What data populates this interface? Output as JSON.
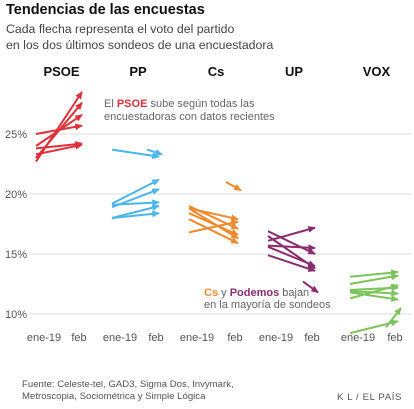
{
  "title": "Tendencias de las encuestas",
  "subtitle_line1": "Cada flecha representa el voto del partido",
  "subtitle_line2": "en los dos últimos sondeos de una encuestadora",
  "source_line1": "Fuente: Celeste-tel, GAD3, Sigma Dos,  Invymark,",
  "source_line2": "Metroscopia, Sociométrica y Simple Lógica",
  "credit": "K L / EL PAÍS",
  "colors": {
    "PSOE": "#e0303a",
    "PP": "#4bb6ec",
    "Cs": "#f08a2c",
    "UP": "#8b2b6f",
    "VOX": "#7cc45a",
    "grid": "#dddddd",
    "axis_text": "#555555"
  },
  "annotations": {
    "psoe_pre": "El ",
    "psoe_party": "PSOE",
    "psoe_post": " sube según todas las",
    "psoe_line2": "encuestadoras con datos recientes",
    "cs_party": "Cs",
    "cs_y": " y ",
    "up_party": "Podemos",
    "cs_post": " bajan",
    "cs_line2": "en la mayoría de sondeos"
  },
  "chart_data": {
    "type": "slope-arrows",
    "y_axis": {
      "min": 7.5,
      "max": 30,
      "ticks": [
        10,
        15,
        20,
        25
      ],
      "tick_labels": [
        "10%",
        "15%",
        "20%",
        "25%"
      ],
      "grid": true
    },
    "x_tick_labels": [
      "ene-19",
      "feb"
    ],
    "panels": [
      {
        "party": "PSOE",
        "arrows": [
          {
            "from": 22.7,
            "to": 28.5
          },
          {
            "from": 23.0,
            "to": 27.6
          },
          {
            "from": 24.0,
            "to": 26.6
          },
          {
            "from": 25.0,
            "to": 25.7
          },
          {
            "from": 23.8,
            "to": 24.2
          },
          {
            "from": 23.3,
            "to": 24.1
          }
        ]
      },
      {
        "party": "PP",
        "arrows": [
          {
            "from": 23.7,
            "to": 23.1,
            "start": "ene-19"
          },
          {
            "from": 23.7,
            "to": 23.3,
            "start": "feb"
          },
          {
            "from": 19.2,
            "to": 21.2
          },
          {
            "from": 18.9,
            "to": 20.4
          },
          {
            "from": 19.1,
            "to": 19.3
          },
          {
            "from": 18.0,
            "to": 19.0
          },
          {
            "from": 18.0,
            "to": 18.4
          }
        ]
      },
      {
        "party": "Cs",
        "arrows": [
          {
            "from": 21.0,
            "to": 20.3,
            "start": "feb"
          },
          {
            "from": 18.8,
            "to": 17.9
          },
          {
            "from": 19.0,
            "to": 17.1
          },
          {
            "from": 18.4,
            "to": 16.6
          },
          {
            "from": 17.9,
            "to": 15.9
          },
          {
            "from": 16.8,
            "to": 17.7
          },
          {
            "from": 18.8,
            "to": 16.3
          }
        ]
      },
      {
        "party": "UP",
        "arrows": [
          {
            "from": 16.9,
            "to": 15.0
          },
          {
            "from": 16.1,
            "to": 17.2
          },
          {
            "from": 16.5,
            "to": 13.8
          },
          {
            "from": 15.6,
            "to": 14.0
          },
          {
            "from": 15.7,
            "to": 15.5
          },
          {
            "from": 14.9,
            "to": 13.6
          },
          {
            "from": 12.7,
            "to": 11.8,
            "start": "feb"
          }
        ]
      },
      {
        "party": "VOX",
        "arrows": [
          {
            "from": 13.1,
            "to": 13.5
          },
          {
            "from": 12.5,
            "to": 13.2
          },
          {
            "from": 11.3,
            "to": 12.4
          },
          {
            "from": 12.0,
            "to": 12.2
          },
          {
            "from": 11.9,
            "to": 11.7
          },
          {
            "from": 11.8,
            "to": 11.2
          },
          {
            "from": 8.4,
            "to": 9.4
          },
          {
            "from": 8.9,
            "to": 10.5,
            "start": "feb"
          }
        ]
      }
    ]
  }
}
